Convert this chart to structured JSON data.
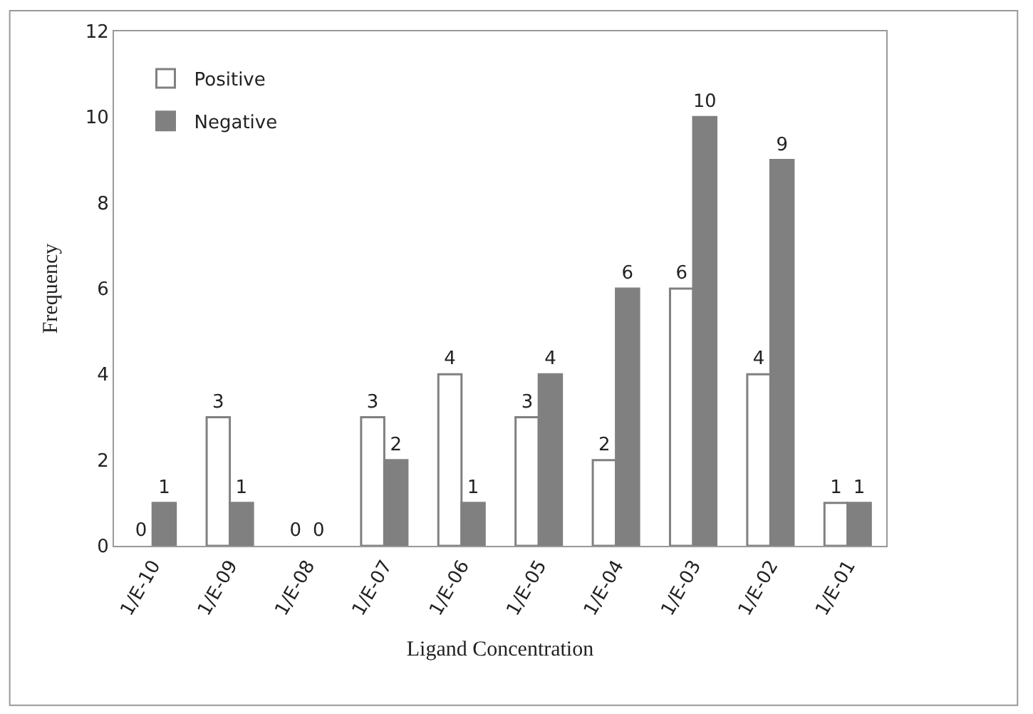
{
  "chart_data": {
    "type": "bar",
    "xlabel": "Ligand Concentration",
    "ylabel": "Frequency",
    "categories": [
      "1/E-10",
      "1/E-09",
      "1/E-08",
      "1/E-07",
      "1/E-06",
      "1/E-05",
      "1/E-04",
      "1/E-03",
      "1/E-02",
      "1/E-01"
    ],
    "series": [
      {
        "name": "Positive",
        "color": "#ffffff",
        "values": [
          0,
          3,
          0,
          3,
          4,
          3,
          2,
          6,
          4,
          1
        ]
      },
      {
        "name": "Negative",
        "color": "#808080",
        "values": [
          1,
          1,
          0,
          2,
          1,
          4,
          6,
          10,
          9,
          1
        ]
      }
    ],
    "ylim": [
      0,
      12
    ],
    "yticks": [
      0,
      2,
      4,
      6,
      8,
      10,
      12
    ],
    "data_labels": true,
    "legend": "top left"
  }
}
